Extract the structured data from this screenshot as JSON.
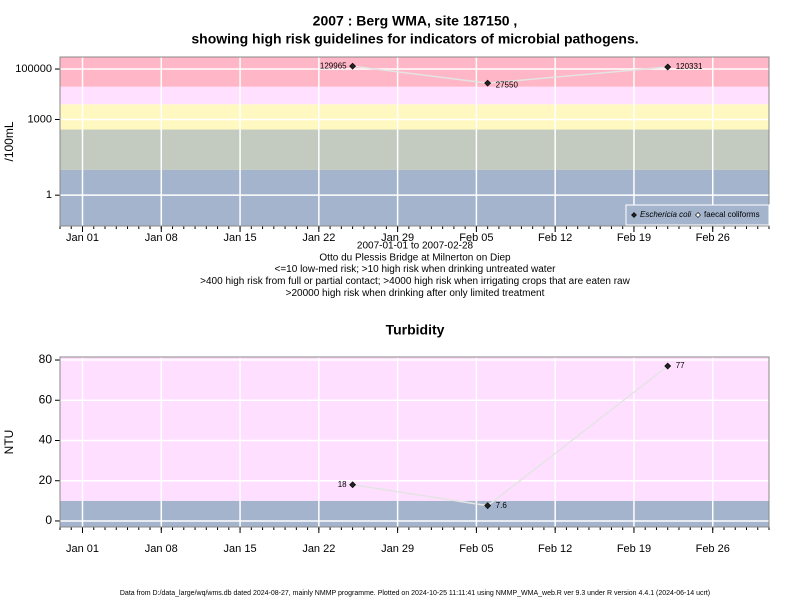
{
  "chart_data": [
    {
      "type": "line",
      "title": "2007 : Berg WMA, site 187150 ,",
      "subtitle": "showing high risk guidelines for indicators of microbial pathogens.",
      "ylabel": "/100mL",
      "log_scale": true,
      "grid": true,
      "legend": "bottom-right",
      "notes": [
        "2007-01-01 to 2007-02-28",
        "Otto du Plessis Bridge at Milnerton on Diep",
        "<=10 low-med risk; >10 high risk when drinking untreated water",
        ">400 high risk from full or partial contact; >4000 high risk when irrigating crops that are eaten raw",
        ">20000 high risk when drinking after only limited treatment"
      ],
      "x": [
        "Jan 25",
        "Feb 06",
        "Feb 22"
      ],
      "series": [
        {
          "name": "Eschericia coli",
          "color": "#222222",
          "values": [
            129965,
            27550,
            120331
          ]
        },
        {
          "name": "faecal coliforms",
          "color": "#ffffff",
          "values": [
            null,
            null,
            null
          ]
        }
      ],
      "thresholds": [
        10,
        400,
        4000,
        20000
      ],
      "band_colors": [
        "#a3b4cc",
        "#c3cbc0",
        "#fff8c0",
        "#ffe0ff",
        "#ffb6c6"
      ],
      "xlim": [
        "Dec 30",
        "Mar 03"
      ],
      "xticks": [
        "Jan 01",
        "Jan 08",
        "Jan 15",
        "Jan 22",
        "Jan 29",
        "Feb 05",
        "Feb 12",
        "Feb 19",
        "Feb 26"
      ],
      "ylim": [
        0.06,
        300000
      ],
      "yticks": [
        1,
        1000,
        100000
      ]
    },
    {
      "type": "line",
      "title": "Turbidity",
      "ylabel": "NTU",
      "log_scale": false,
      "grid": true,
      "x": [
        "Jan 25",
        "Feb 06",
        "Feb 22"
      ],
      "series": [
        {
          "name": "Turbidity",
          "color": "#222222",
          "values": [
            18,
            7.6,
            77
          ]
        }
      ],
      "thresholds": [
        10
      ],
      "band_colors": [
        "#a3b4cc",
        "#ffdfff"
      ],
      "xlim": [
        "Dec 30",
        "Mar 03"
      ],
      "xticks": [
        "Jan 01",
        "Jan 08",
        "Jan 15",
        "Jan 22",
        "Jan 29",
        "Feb 05",
        "Feb 12",
        "Feb 19",
        "Feb 26"
      ],
      "ylim": [
        -3,
        81.5
      ],
      "yticks": [
        0,
        20,
        40,
        60,
        80
      ]
    }
  ],
  "footer": "Data from D:/data_large/wq/wms.db dated 2024-08-27, mainly NMMP programme. Plotted on 2024-10-25 11:11:41 using NMMP_WMA_web.R ver 9.3 under R version 4.4.1 (2024-06-14 ucrt)"
}
